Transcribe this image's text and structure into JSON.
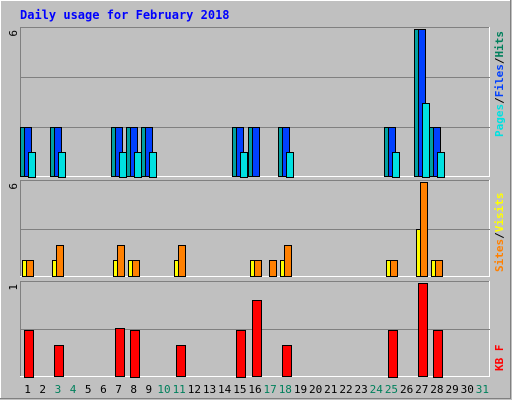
{
  "title": "Daily usage for February 2018",
  "colors": {
    "background": "#c0c0c0",
    "title": "#0000ff",
    "hits": "#00e0e0",
    "files": "#0040ff",
    "pages": "#00e0e0",
    "sites": "#ffff00",
    "visits": "#ff8000",
    "kbf": "#ff0000",
    "weekend_label": "#00805c",
    "weekday_label": "#000000",
    "grid": "#808080"
  },
  "chart_data": {
    "type": "bar",
    "x": [
      1,
      2,
      3,
      4,
      5,
      6,
      7,
      8,
      9,
      10,
      11,
      12,
      13,
      14,
      15,
      16,
      17,
      18,
      19,
      20,
      21,
      22,
      23,
      24,
      25,
      26,
      27,
      28,
      29,
      30,
      31
    ],
    "weekend_days": [
      3,
      4,
      10,
      11,
      17,
      18,
      24,
      25,
      31
    ],
    "panels": [
      {
        "id": "hits_files_pages",
        "scale_label": "6",
        "ylim": [
          0,
          6
        ],
        "legend": [
          {
            "text": "Pages",
            "color": "#00e0e0"
          },
          {
            "text": "/",
            "color": "#000000"
          },
          {
            "text": "Files",
            "color": "#0040ff"
          },
          {
            "text": "/",
            "color": "#000000"
          },
          {
            "text": "Hits",
            "color": "#00805c"
          }
        ],
        "series": [
          {
            "key": "hits",
            "color": "#00a0a0",
            "values": [
              2,
              0,
              2,
              0,
              0,
              0,
              2,
              2,
              2,
              0,
              0,
              0,
              0,
              0,
              2,
              2,
              0,
              2,
              0,
              0,
              0,
              0,
              0,
              0,
              2,
              0,
              6,
              2,
              0,
              0,
              0
            ]
          },
          {
            "key": "files",
            "color": "#0040ff",
            "values": [
              2,
              0,
              2,
              0,
              0,
              0,
              2,
              2,
              2,
              0,
              0,
              0,
              0,
              0,
              2,
              2,
              0,
              2,
              0,
              0,
              0,
              0,
              0,
              0,
              2,
              0,
              6,
              2,
              0,
              0,
              0
            ]
          },
          {
            "key": "pages",
            "color": "#00e0e0",
            "values": [
              1,
              0,
              1,
              0,
              0,
              0,
              1,
              1,
              1,
              0,
              0,
              0,
              0,
              0,
              1,
              0,
              0,
              1,
              0,
              0,
              0,
              0,
              0,
              0,
              1,
              0,
              3,
              1,
              0,
              0,
              0
            ]
          }
        ]
      },
      {
        "id": "sites_visits",
        "scale_label": "6",
        "ylim": [
          0,
          6
        ],
        "legend": [
          {
            "text": "Sites",
            "color": "#ff8000"
          },
          {
            "text": "/",
            "color": "#000000"
          },
          {
            "text": "Visits",
            "color": "#ffff00"
          }
        ],
        "series": [
          {
            "key": "sites",
            "color": "#ffff00",
            "values": [
              1,
              0,
              1,
              0,
              0,
              0,
              1,
              1,
              0,
              0,
              1,
              0,
              0,
              0,
              0,
              1,
              0,
              1,
              0,
              0,
              0,
              0,
              0,
              0,
              1,
              0,
              3,
              1,
              0,
              0,
              0
            ]
          },
          {
            "key": "visits",
            "color": "#ff8000",
            "values": [
              1,
              0,
              2,
              0,
              0,
              0,
              2,
              1,
              0,
              0,
              2,
              0,
              0,
              0,
              0,
              1,
              1,
              2,
              0,
              0,
              0,
              0,
              0,
              0,
              1,
              0,
              6,
              1,
              0,
              0,
              0
            ]
          }
        ]
      },
      {
        "id": "kbf",
        "scale_label": "1",
        "ylim": [
          0,
          1
        ],
        "legend": [
          {
            "text": "KB F",
            "color": "#ff0000"
          }
        ],
        "series": [
          {
            "key": "kbf",
            "color": "#ff0000",
            "values": [
              0.5,
              0,
              0.33,
              0,
              0,
              0,
              0.52,
              0.5,
              0,
              0,
              0.33,
              0,
              0,
              0,
              0.5,
              0.82,
              0,
              0.33,
              0,
              0,
              0,
              0,
              0,
              0,
              0.5,
              0,
              1,
              0.5,
              0,
              0,
              0
            ]
          }
        ]
      }
    ]
  }
}
